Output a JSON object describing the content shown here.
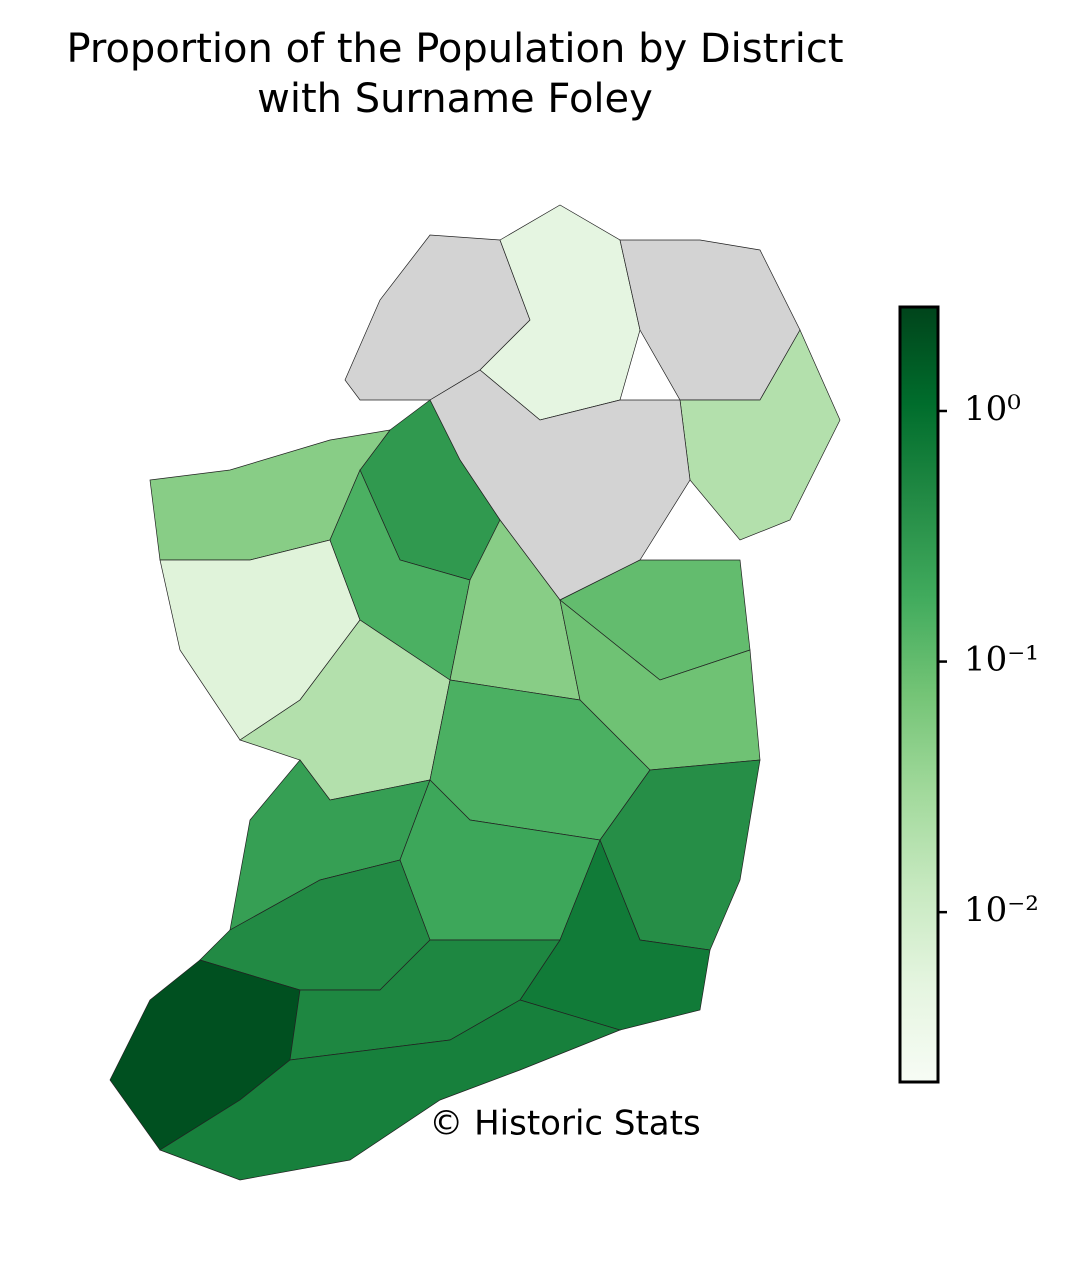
{
  "chart_data": {
    "type": "choropleth",
    "title": [
      "Proportion of the Population by District",
      "with Surname Foley"
    ],
    "credit": "© Historic Stats",
    "values": [
      null,
      0.005,
      null,
      0.02,
      null,
      0.3,
      0.05,
      0.006,
      0.15,
      0.1,
      0.05,
      0.02,
      0.08,
      0.15,
      0.4,
      0.25,
      0.2,
      0.7,
      0.45,
      2.0,
      0.5,
      0.6
    ],
    "colors": [
      "#f7fcf5",
      "#e5f5e0",
      "#c7e9c0",
      "#a1d99b",
      "#74c476",
      "#41ab5d",
      "#238b45",
      "#006d2c",
      "#00441b"
    ],
    "no_data_color": "#d3d3d3",
    "log_scale": true,
    "clim": [
      0.0021,
      2.6
    ],
    "cticks": [
      {
        "value": 1,
        "label": "10⁰"
      },
      {
        "value": 0.1,
        "label": "10⁻¹"
      },
      {
        "value": 0.01,
        "label": "10⁻²"
      }
    ]
  }
}
